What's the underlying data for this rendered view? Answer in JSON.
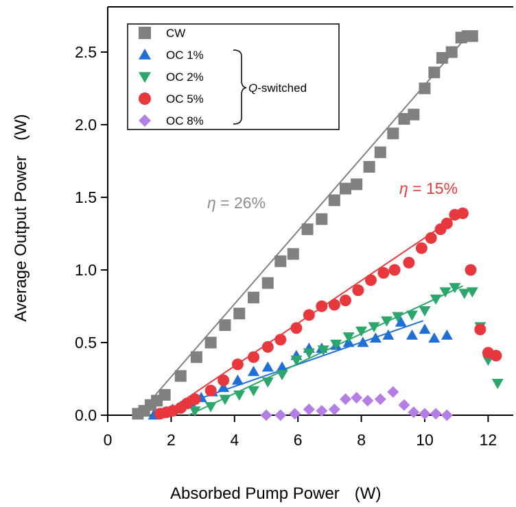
{
  "chart_data": {
    "type": "scatter",
    "xlabel": "Absorbed Pump Power",
    "xlabel_unit": "(W)",
    "ylabel": "Average Output Power",
    "ylabel_unit": "(W)",
    "xlim": [
      0,
      12.8
    ],
    "ylim": [
      0,
      2.85
    ],
    "x_ticks": [
      "0",
      "2",
      "4",
      "6",
      "8",
      "10",
      "12"
    ],
    "y_ticks": [
      "0.0",
      "0.5",
      "1.0",
      "1.5",
      "2.0",
      "2.5"
    ],
    "grid": false,
    "legend_position": "top-left",
    "bracket_label_prefix": "Q",
    "bracket_label_suffix": "-switched",
    "series": [
      {
        "name": "CW",
        "marker": "square",
        "color": "#808080",
        "points": [
          [
            0.95,
            0.01
          ],
          [
            1.15,
            0.03
          ],
          [
            1.35,
            0.07
          ],
          [
            1.55,
            0.1
          ],
          [
            1.8,
            0.14
          ],
          [
            2.3,
            0.27
          ],
          [
            2.8,
            0.4
          ],
          [
            3.25,
            0.5
          ],
          [
            3.7,
            0.62
          ],
          [
            4.15,
            0.7
          ],
          [
            4.6,
            0.81
          ],
          [
            5.05,
            0.91
          ],
          [
            5.45,
            1.06
          ],
          [
            5.85,
            1.11
          ],
          [
            6.3,
            1.28
          ],
          [
            6.75,
            1.35
          ],
          [
            7.15,
            1.48
          ],
          [
            7.5,
            1.56
          ],
          [
            7.85,
            1.59
          ],
          [
            8.25,
            1.71
          ],
          [
            8.6,
            1.81
          ],
          [
            9,
            1.94
          ],
          [
            9.35,
            2.04
          ],
          [
            9.65,
            2.07
          ],
          [
            10,
            2.25
          ],
          [
            10.3,
            2.36
          ],
          [
            10.55,
            2.46
          ],
          [
            10.85,
            2.5
          ],
          [
            11.15,
            2.6
          ],
          [
            11.35,
            2.61
          ],
          [
            11.5,
            2.61
          ]
        ],
        "fit": {
          "label_prefix": "η",
          "label_value": " = 26%",
          "line": [
            [
              0.95,
              0.0
            ],
            [
              11.3,
              2.6
            ]
          ]
        }
      },
      {
        "name": "OC 1%",
        "marker": "triangle-up",
        "color": "#1f6fd6",
        "points": [
          [
            1.45,
            0.0
          ],
          [
            1.65,
            0.01
          ],
          [
            1.85,
            0.02
          ],
          [
            2.05,
            0.04
          ],
          [
            2.3,
            0.06
          ],
          [
            2.6,
            0.09
          ],
          [
            2.95,
            0.12
          ],
          [
            3.3,
            0.16
          ],
          [
            3.65,
            0.19
          ],
          [
            4.1,
            0.24
          ],
          [
            4.6,
            0.3
          ],
          [
            5.05,
            0.33
          ],
          [
            5.5,
            0.33
          ],
          [
            5.95,
            0.41
          ],
          [
            6.35,
            0.46
          ],
          [
            6.75,
            0.46
          ],
          [
            7.2,
            0.48
          ],
          [
            7.6,
            0.5
          ],
          [
            8.05,
            0.5
          ],
          [
            8.45,
            0.53
          ],
          [
            8.85,
            0.55
          ],
          [
            9.25,
            0.64
          ],
          [
            9.6,
            0.55
          ],
          [
            10,
            0.59
          ],
          [
            10.3,
            0.53
          ],
          [
            10.7,
            0.55
          ]
        ],
        "fit": {
          "line": [
            [
              1.4,
              0.0
            ],
            [
              9.95,
              0.65
            ]
          ]
        }
      },
      {
        "name": "OC 2%",
        "marker": "triangle-down",
        "color": "#2ca66a",
        "points": [
          [
            2.75,
            0.03
          ],
          [
            3.25,
            0.06
          ],
          [
            3.7,
            0.11
          ],
          [
            4.15,
            0.14
          ],
          [
            4.6,
            0.17
          ],
          [
            5.05,
            0.23
          ],
          [
            5.5,
            0.28
          ],
          [
            5.95,
            0.38
          ],
          [
            6.35,
            0.43
          ],
          [
            6.8,
            0.45
          ],
          [
            7.2,
            0.49
          ],
          [
            7.6,
            0.54
          ],
          [
            8.0,
            0.58
          ],
          [
            8.4,
            0.61
          ],
          [
            8.8,
            0.65
          ],
          [
            9.15,
            0.68
          ],
          [
            9.6,
            0.69
          ],
          [
            10,
            0.72
          ],
          [
            10.35,
            0.8
          ],
          [
            10.65,
            0.85
          ],
          [
            10.95,
            0.88
          ],
          [
            11.25,
            0.84
          ],
          [
            11.5,
            0.85
          ],
          [
            11.75,
            0.61
          ],
          [
            12.0,
            0.38
          ],
          [
            12.3,
            0.22
          ]
        ],
        "fit": {
          "line": [
            [
              2.55,
              0.0
            ],
            [
              11.2,
              0.89
            ]
          ]
        }
      },
      {
        "name": "OC 5%",
        "marker": "circle",
        "color": "#e8383d",
        "points": [
          [
            1.65,
            0.01
          ],
          [
            1.85,
            0.02
          ],
          [
            2.05,
            0.03
          ],
          [
            2.3,
            0.05
          ],
          [
            2.5,
            0.08
          ],
          [
            2.75,
            0.11
          ],
          [
            3.25,
            0.17
          ],
          [
            3.65,
            0.24
          ],
          [
            4.1,
            0.35
          ],
          [
            4.6,
            0.4
          ],
          [
            5.05,
            0.47
          ],
          [
            5.45,
            0.52
          ],
          [
            5.95,
            0.6
          ],
          [
            6.35,
            0.69
          ],
          [
            6.75,
            0.75
          ],
          [
            7.15,
            0.76
          ],
          [
            7.5,
            0.79
          ],
          [
            7.9,
            0.86
          ],
          [
            8.3,
            0.93
          ],
          [
            8.7,
            0.98
          ],
          [
            9.05,
            1.0
          ],
          [
            9.5,
            1.05
          ],
          [
            9.9,
            1.15
          ],
          [
            10.2,
            1.22
          ],
          [
            10.5,
            1.28
          ],
          [
            10.7,
            1.32
          ],
          [
            10.95,
            1.38
          ],
          [
            11.2,
            1.39
          ],
          [
            11.45,
            1.0
          ],
          [
            11.75,
            0.59
          ],
          [
            12.0,
            0.43
          ],
          [
            12.25,
            0.41
          ]
        ],
        "fit": {
          "label_prefix": "η",
          "label_value": " = 15%",
          "line": [
            [
              1.7,
              0.0
            ],
            [
              11.15,
              1.39
            ]
          ]
        }
      },
      {
        "name": "OC 8%",
        "marker": "diamond",
        "color": "#b47ee5",
        "points": [
          [
            5.0,
            0.0
          ],
          [
            5.45,
            0.0
          ],
          [
            5.9,
            0.01
          ],
          [
            6.35,
            0.04
          ],
          [
            6.75,
            0.03
          ],
          [
            7.15,
            0.04
          ],
          [
            7.5,
            0.11
          ],
          [
            7.85,
            0.12
          ],
          [
            8.2,
            0.1
          ],
          [
            8.6,
            0.11
          ],
          [
            9.0,
            0.16
          ],
          [
            9.35,
            0.07
          ],
          [
            9.65,
            0.02
          ],
          [
            10.0,
            0.01
          ],
          [
            10.35,
            0.01
          ],
          [
            10.7,
            0.0
          ]
        ]
      }
    ]
  }
}
